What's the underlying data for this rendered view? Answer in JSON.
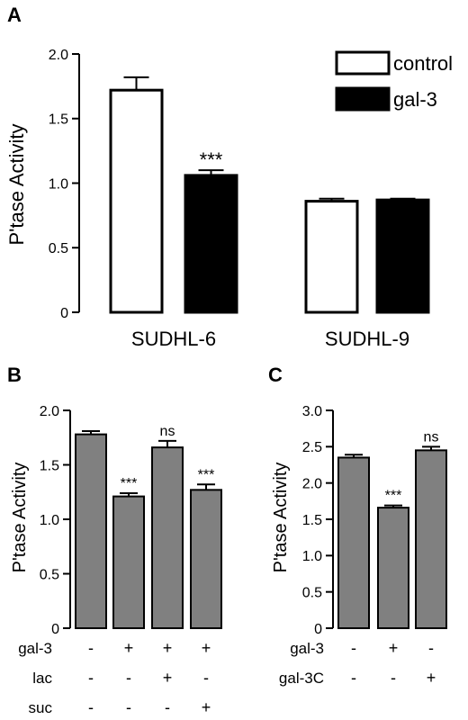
{
  "panels": {
    "A": "A",
    "B": "B",
    "C": "C"
  },
  "colors": {
    "open_bar": "#ffffff",
    "filled_bar": "#000000",
    "grey_bar": "#808080",
    "axis": "#000000"
  },
  "chart_data": [
    {
      "panel": "A",
      "type": "bar",
      "ylabel": "P'tase Activity",
      "ylim": [
        0,
        2.0
      ],
      "yticks": [
        "0",
        "0.5",
        "1.0",
        "1.5",
        "2.0"
      ],
      "categories": [
        "SUDHL-6",
        "SUDHL-9"
      ],
      "series": [
        {
          "name": "control",
          "values": [
            1.72,
            0.86
          ],
          "errors": [
            0.1,
            0.02
          ]
        },
        {
          "name": "gal-3",
          "values": [
            1.06,
            0.87
          ],
          "errors": [
            0.04,
            0.01
          ]
        }
      ],
      "annotations": [
        {
          "category": "SUDHL-6",
          "series": "gal-3",
          "text": "***"
        }
      ],
      "legend": {
        "placement": "top-right",
        "entries": [
          "control",
          "gal-3"
        ]
      }
    },
    {
      "panel": "B",
      "type": "bar",
      "ylabel": "P'tase Activity",
      "ylim": [
        0,
        2.0
      ],
      "yticks": [
        "0",
        "0.5",
        "1.0",
        "1.5",
        "2.0"
      ],
      "values": [
        1.78,
        1.21,
        1.66,
        1.27
      ],
      "errors": [
        0.03,
        0.03,
        0.06,
        0.05
      ],
      "annotations": [
        "",
        "***",
        "ns",
        "***"
      ],
      "conditions": [
        {
          "label": "gal-3",
          "signs": [
            "-",
            "+",
            "+",
            "+"
          ]
        },
        {
          "label": "lac",
          "signs": [
            "-",
            "-",
            "+",
            "-"
          ]
        },
        {
          "label": "suc",
          "signs": [
            "-",
            "-",
            "-",
            "+"
          ]
        }
      ]
    },
    {
      "panel": "C",
      "type": "bar",
      "ylabel": "P'tase Activity",
      "ylim": [
        0,
        3.0
      ],
      "yticks": [
        "0",
        "0.5",
        "1.0",
        "1.5",
        "2.0",
        "2.5",
        "3.0"
      ],
      "values": [
        2.35,
        1.66,
        2.45
      ],
      "errors": [
        0.04,
        0.03,
        0.05
      ],
      "annotations": [
        "",
        "***",
        "ns"
      ],
      "conditions": [
        {
          "label": "gal-3",
          "signs": [
            "-",
            "+",
            "-"
          ]
        },
        {
          "label": "gal-3C",
          "signs": [
            "-",
            "-",
            "+"
          ]
        }
      ]
    }
  ]
}
